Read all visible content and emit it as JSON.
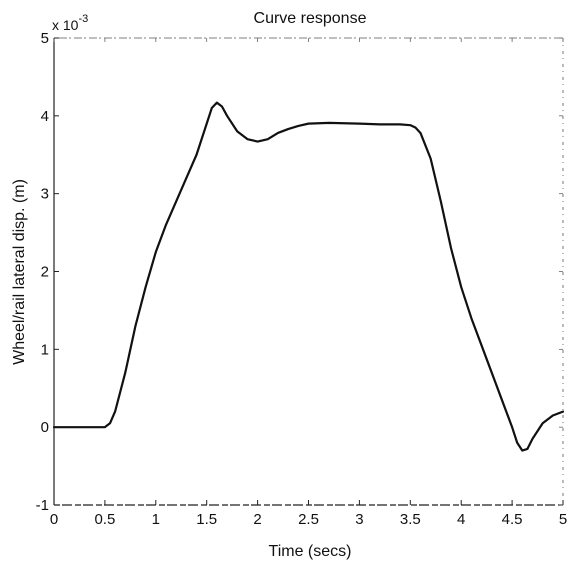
{
  "chart_data": {
    "type": "line",
    "title": "Curve response",
    "xlabel": "Time (secs)",
    "ylabel": "Wheel/rail lateral disp. (m)",
    "y_multiplier_label": "x 10",
    "y_multiplier_exponent": "-3",
    "xlim": [
      0,
      5
    ],
    "ylim": [
      -1,
      5
    ],
    "x_ticks": [
      0,
      0.5,
      1,
      1.5,
      2,
      2.5,
      3,
      3.5,
      4,
      4.5,
      5
    ],
    "x_tick_labels": [
      "0",
      "0.5",
      "1",
      "1.5",
      "2",
      "2.5",
      "3",
      "3.5",
      "4",
      "4.5",
      "5"
    ],
    "y_ticks": [
      -1,
      0,
      1,
      2,
      3,
      4,
      5
    ],
    "y_tick_labels": [
      "-1",
      "0",
      "1",
      "2",
      "3",
      "4",
      "5"
    ],
    "grid": false,
    "line_color": "#111111",
    "series": [
      {
        "x": [
          0,
          0.3,
          0.5,
          0.55,
          0.6,
          0.7,
          0.8,
          0.9,
          1.0,
          1.1,
          1.2,
          1.3,
          1.4,
          1.5,
          1.55,
          1.6,
          1.65,
          1.7,
          1.8,
          1.9,
          2.0,
          2.1,
          2.2,
          2.3,
          2.4,
          2.5,
          2.7,
          3.0,
          3.2,
          3.4,
          3.5,
          3.55,
          3.6,
          3.7,
          3.8,
          3.9,
          4.0,
          4.1,
          4.2,
          4.3,
          4.4,
          4.5,
          4.55,
          4.6,
          4.65,
          4.7,
          4.8,
          4.9,
          5.0
        ],
        "y": [
          0,
          0,
          0,
          0.05,
          0.2,
          0.7,
          1.3,
          1.8,
          2.25,
          2.6,
          2.9,
          3.2,
          3.5,
          3.9,
          4.1,
          4.17,
          4.12,
          4.0,
          3.8,
          3.7,
          3.67,
          3.7,
          3.78,
          3.83,
          3.87,
          3.9,
          3.91,
          3.9,
          3.89,
          3.89,
          3.88,
          3.85,
          3.78,
          3.45,
          2.9,
          2.3,
          1.8,
          1.4,
          1.05,
          0.7,
          0.35,
          0.0,
          -0.2,
          -0.3,
          -0.28,
          -0.15,
          0.05,
          0.15,
          0.2
        ]
      }
    ]
  }
}
